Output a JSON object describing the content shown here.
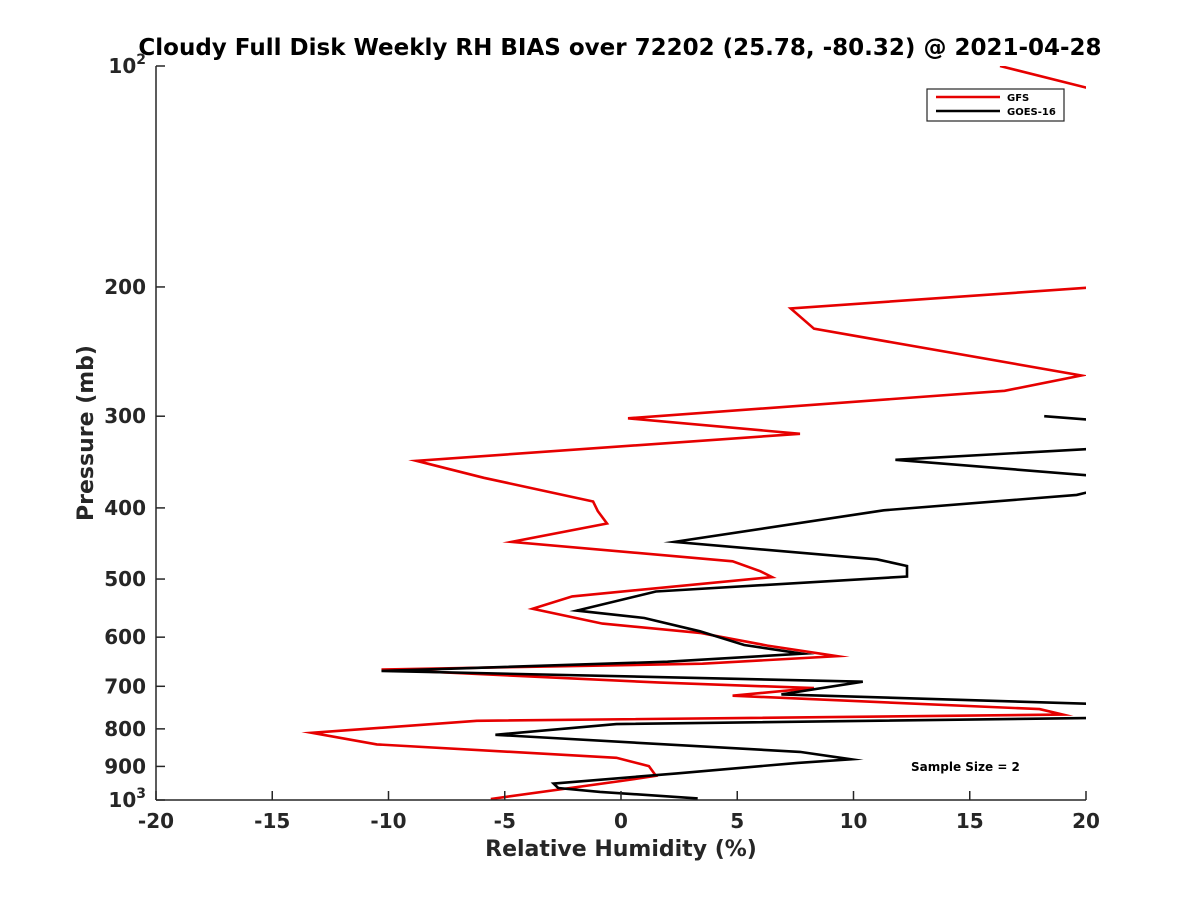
{
  "chart_data": {
    "type": "line",
    "title": "Cloudy Full Disk Weekly RH BIAS over 72202 (25.78, -80.32) @ 2021-04-28",
    "xlabel": "Relative Humidity (%)",
    "ylabel": "Pressure (mb)",
    "xlim": [
      -20,
      20
    ],
    "ylim": [
      100,
      1000
    ],
    "y_scale": "log",
    "y_reversed": true,
    "x_ticks": [
      -20,
      -15,
      -10,
      -5,
      0,
      5,
      10,
      15,
      20
    ],
    "x_tick_labels": [
      "-20",
      "-15",
      "-10",
      "-5",
      "0",
      "5",
      "10",
      "15",
      "20"
    ],
    "y_ticks": [
      100,
      200,
      300,
      400,
      500,
      600,
      700,
      800,
      900,
      1000
    ],
    "y_tick_labels": [
      {
        "base": "10",
        "sup": "2"
      },
      {
        "base": "200",
        "sup": ""
      },
      {
        "base": "300",
        "sup": ""
      },
      {
        "base": "400",
        "sup": ""
      },
      {
        "base": "500",
        "sup": ""
      },
      {
        "base": "600",
        "sup": ""
      },
      {
        "base": "700",
        "sup": ""
      },
      {
        "base": "800",
        "sup": ""
      },
      {
        "base": "900",
        "sup": ""
      },
      {
        "base": "10",
        "sup": "3"
      }
    ],
    "grid": false,
    "legend_position": "top-right",
    "annotation": "Sample Size = 2",
    "series": [
      {
        "name": "GFS",
        "color": "#e60000",
        "points": [
          [
            16.3,
            100
          ],
          [
            20.5,
            108
          ],
          [
            20.5,
            200
          ],
          [
            7.3,
            214
          ],
          [
            8.3,
            228
          ],
          [
            19.8,
            264
          ],
          [
            16.5,
            277
          ],
          [
            0.3,
            302
          ],
          [
            7.7,
            317
          ],
          [
            -8.8,
            345
          ],
          [
            -5.9,
            364
          ],
          [
            -1.2,
            392
          ],
          [
            -1.0,
            404
          ],
          [
            -0.6,
            420
          ],
          [
            -4.7,
            445
          ],
          [
            4.8,
            473
          ],
          [
            6.0,
            488
          ],
          [
            6.5,
            497
          ],
          [
            -2.1,
            528
          ],
          [
            -3.8,
            549
          ],
          [
            -0.8,
            575
          ],
          [
            3.4,
            592
          ],
          [
            6.3,
            616
          ],
          [
            9.3,
            637
          ],
          [
            3.5,
            652
          ],
          [
            -10.3,
            664
          ],
          [
            1.7,
            692
          ],
          [
            8.3,
            704
          ],
          [
            4.8,
            721
          ],
          [
            18.0,
            752
          ],
          [
            19.0,
            765
          ],
          [
            -6.2,
            780
          ],
          [
            -13.3,
            810
          ],
          [
            -10.5,
            840
          ],
          [
            -0.2,
            876
          ],
          [
            1.2,
            899
          ],
          [
            1.5,
            927
          ],
          [
            0.0,
            942
          ],
          [
            -5.6,
            997
          ]
        ]
      },
      {
        "name": "GOES-16",
        "color": "#000000",
        "points": [
          [
            18.2,
            300
          ],
          [
            20.5,
            304
          ],
          [
            20.5,
            332
          ],
          [
            11.8,
            344
          ],
          [
            20.5,
            362
          ],
          [
            20.5,
            378
          ],
          [
            19.6,
            384
          ],
          [
            11.3,
            403
          ],
          [
            2.3,
            445
          ],
          [
            11.0,
            470
          ],
          [
            12.3,
            480
          ],
          [
            12.3,
            496
          ],
          [
            1.5,
            520
          ],
          [
            -1.9,
            552
          ],
          [
            1.0,
            565
          ],
          [
            3.4,
            589
          ],
          [
            5.3,
            615
          ],
          [
            7.8,
            632
          ],
          [
            2.0,
            648
          ],
          [
            -10.3,
            667
          ],
          [
            10.4,
            690
          ],
          [
            6.9,
            718
          ],
          [
            20.5,
            740
          ],
          [
            20.5,
            773
          ],
          [
            -0.2,
            788
          ],
          [
            -5.4,
            815
          ],
          [
            7.7,
            860
          ],
          [
            9.9,
            880
          ],
          [
            7.6,
            890
          ],
          [
            2.4,
            920
          ],
          [
            -2.9,
            950
          ],
          [
            -2.7,
            963
          ],
          [
            -0.9,
            975
          ],
          [
            3.3,
            995
          ]
        ]
      }
    ]
  }
}
